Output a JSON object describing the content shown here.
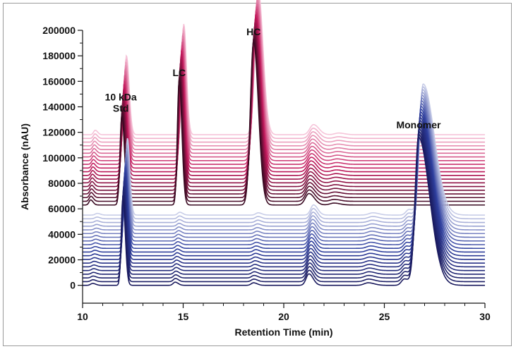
{
  "chart_data": {
    "type": "line",
    "title": "",
    "xlabel": "Retention Time (min)",
    "ylabel": "Absorbance (nAU)",
    "xlim": [
      10,
      30
    ],
    "ylim": [
      -14000,
      200000
    ],
    "x_ticks": [
      10,
      15,
      20,
      25,
      30
    ],
    "y_ticks": [
      0,
      20000,
      40000,
      60000,
      80000,
      100000,
      120000,
      140000,
      160000,
      180000,
      200000
    ],
    "grid": false,
    "legend": "none",
    "annotations": [
      {
        "text": "10 kDa",
        "x": 11.9,
        "y": 145000
      },
      {
        "text": "Std",
        "x": 11.9,
        "y": 136000
      },
      {
        "text": "LC",
        "x": 14.8,
        "y": 164000
      },
      {
        "text": "HC",
        "x": 18.5,
        "y": 196000
      },
      {
        "text": "Monomer",
        "x": 26.7,
        "y": 123000
      }
    ],
    "series_groups": [
      {
        "name": "",
        "color_dark": "#3a0a22",
        "color_mid": "#c2185b",
        "color_light": "#f6c4d9",
        "trace_count": 20,
        "baseline_first": 63000,
        "baseline_step": 2900,
        "peaks": [
          {
            "x": 10.4,
            "height": 4000,
            "width": 0.08
          },
          {
            "x": 11.95,
            "height": 70000,
            "width": 0.09
          },
          {
            "x": 14.8,
            "height": 98000,
            "width": 0.09
          },
          {
            "x": 18.5,
            "height": 128000,
            "width": 0.16
          },
          {
            "x": 21.25,
            "height": 9000,
            "width": 0.18
          },
          {
            "x": 22.5,
            "height": 1500,
            "width": 0.2
          }
        ]
      },
      {
        "name": "",
        "color_dark": "#1a1a5e",
        "color_mid": "#2e3f9e",
        "color_light": "#c8cde8",
        "trace_count": 20,
        "baseline_first": 0,
        "baseline_step": 2900,
        "peaks": [
          {
            "x": 10.5,
            "height": 1500,
            "width": 0.1
          },
          {
            "x": 12.0,
            "height": 68000,
            "width": 0.08
          },
          {
            "x": 14.6,
            "height": 2500,
            "width": 0.1
          },
          {
            "x": 18.5,
            "height": 2000,
            "width": 0.12
          },
          {
            "x": 21.25,
            "height": 9000,
            "width": 0.14
          },
          {
            "x": 24.2,
            "height": 2000,
            "width": 0.2
          },
          {
            "x": 26.0,
            "height": 5000,
            "width": 0.15
          },
          {
            "x": 26.7,
            "height": 116000,
            "width": 0.5
          }
        ]
      }
    ]
  }
}
